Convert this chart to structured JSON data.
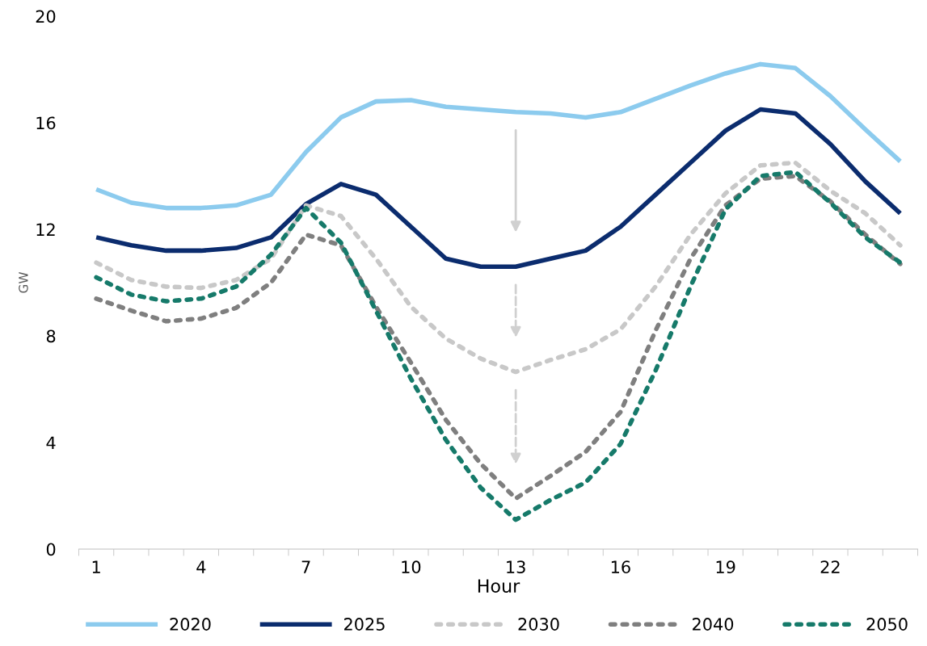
{
  "chart_data": {
    "type": "line",
    "xlabel": "Hour",
    "ylabel": "GW",
    "categories": [
      "1",
      null,
      null,
      "4",
      null,
      null,
      "7",
      null,
      null,
      "10",
      null,
      null,
      "13",
      null,
      null,
      "16",
      null,
      null,
      "19",
      null,
      null,
      "22",
      null,
      null
    ],
    "ylim": [
      0,
      20
    ],
    "yticks": [
      0,
      4,
      8,
      12,
      16,
      20
    ],
    "grid": false,
    "legend": "bottom",
    "marker": "none",
    "series": [
      {
        "name": "2020",
        "color": "#8ccbee",
        "line_style": "solid",
        "values": [
          13.5,
          13.0,
          12.8,
          12.8,
          12.9,
          13.3,
          14.9,
          16.2,
          16.8,
          16.85,
          16.6,
          16.5,
          16.4,
          16.35,
          16.2,
          16.4,
          16.9,
          17.4,
          17.85,
          18.2,
          18.05,
          17.0,
          15.75,
          14.55
        ]
      },
      {
        "name": "2025",
        "color": "#0b2c6e",
        "line_style": "solid",
        "values": [
          11.7,
          11.4,
          11.2,
          11.2,
          11.3,
          11.7,
          12.95,
          13.7,
          13.3,
          12.1,
          10.9,
          10.6,
          10.6,
          10.9,
          11.2,
          12.1,
          13.3,
          14.5,
          15.7,
          16.5,
          16.35,
          15.2,
          13.8,
          12.6
        ]
      },
      {
        "name": "2030",
        "color": "#c8c8c8",
        "line_style": "dotted",
        "values": [
          10.75,
          10.1,
          9.85,
          9.8,
          10.1,
          10.9,
          12.9,
          12.5,
          10.9,
          9.1,
          7.9,
          7.15,
          6.65,
          7.1,
          7.5,
          8.25,
          9.85,
          11.8,
          13.35,
          14.4,
          14.5,
          13.45,
          12.6,
          11.4
        ]
      },
      {
        "name": "2040",
        "color": "#7f7f7f",
        "line_style": "dotted",
        "values": [
          9.4,
          8.95,
          8.55,
          8.65,
          9.05,
          10.0,
          11.8,
          11.4,
          9.1,
          7.0,
          4.85,
          3.2,
          1.9,
          2.75,
          3.65,
          5.15,
          8.2,
          10.9,
          12.9,
          13.9,
          14.0,
          13.05,
          11.8,
          10.7
        ]
      },
      {
        "name": "2050",
        "color": "#167a6a",
        "line_style": "dotted",
        "values": [
          10.2,
          9.55,
          9.3,
          9.4,
          9.85,
          11.05,
          12.8,
          11.5,
          8.95,
          6.4,
          4.1,
          2.3,
          1.1,
          1.85,
          2.5,
          3.95,
          6.7,
          9.85,
          12.75,
          14.0,
          14.15,
          13.0,
          11.7,
          10.75
        ]
      }
    ]
  }
}
